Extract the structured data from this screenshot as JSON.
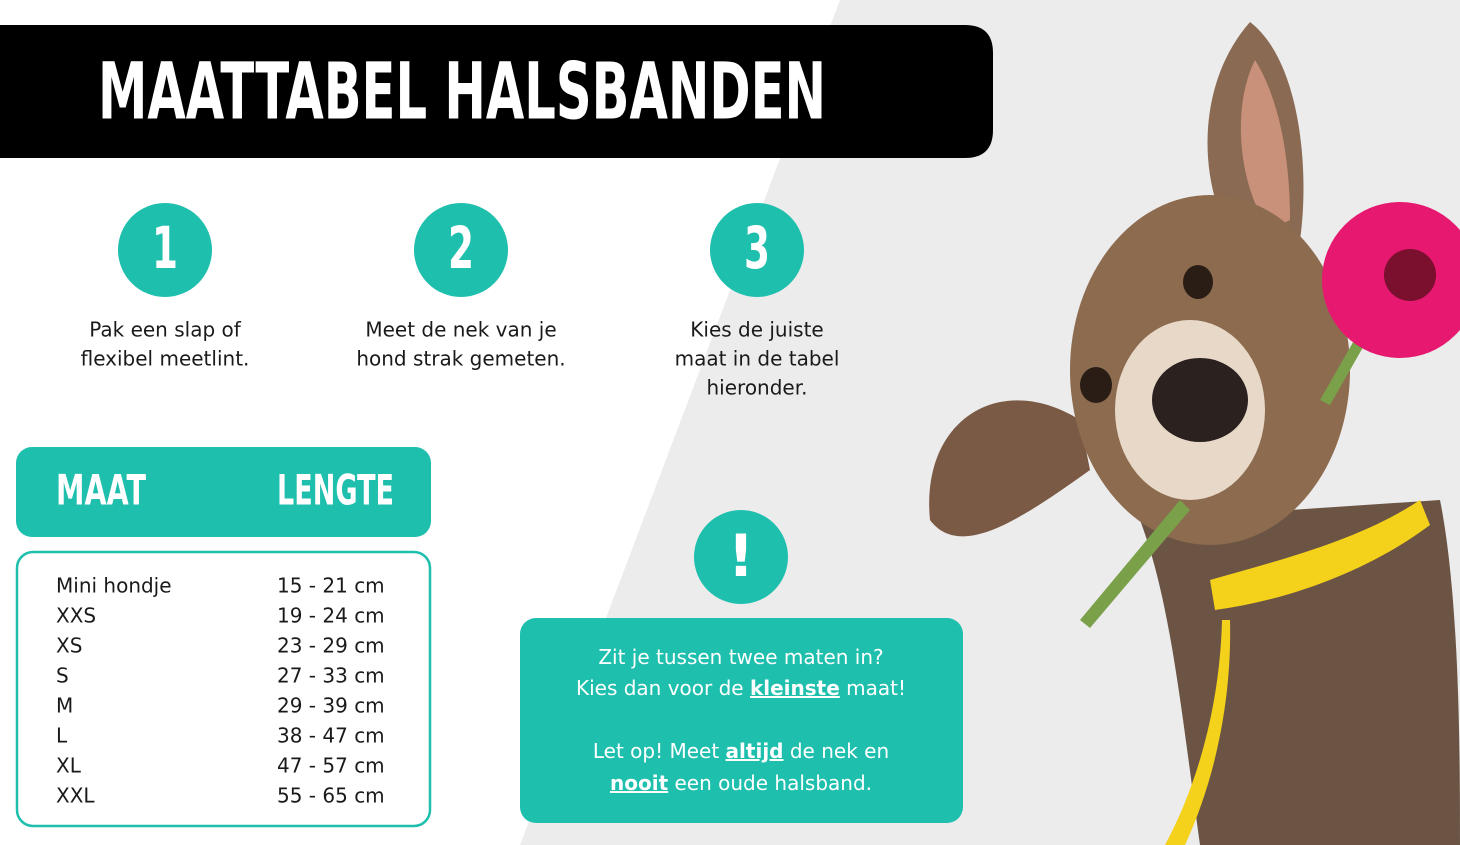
{
  "header": {
    "title": "MAATTABEL HALSBANDEN"
  },
  "steps": [
    {
      "number": "1",
      "lines": [
        "Pak een slap of",
        "flexibel meetlint."
      ]
    },
    {
      "number": "2",
      "lines": [
        "Meet de nek van je",
        "hond strak gemeten."
      ]
    },
    {
      "number": "3",
      "lines": [
        "Kies de juiste",
        "maat in de tabel",
        "hieronder."
      ]
    }
  ],
  "table": {
    "columns": [
      "MAAT",
      "LENGTE"
    ],
    "rows": [
      [
        "Mini hondje",
        "15 - 21 cm"
      ],
      [
        "XXS",
        "19 - 24 cm"
      ],
      [
        "XS",
        "23 - 29 cm"
      ],
      [
        "S",
        "27 - 33 cm"
      ],
      [
        "M",
        "29 - 39 cm"
      ],
      [
        "L",
        "38 - 47 cm"
      ],
      [
        "XL",
        "47 - 57 cm"
      ],
      [
        "XXL",
        "55 - 65 cm"
      ]
    ]
  },
  "notice": {
    "symbol": "!",
    "paragraphs": [
      [
        [
          "Zit je tussen twee maten in?"
        ],
        [
          "Kies dan voor de ",
          {
            "text": "kleinste",
            "underline": true
          },
          " maat!"
        ]
      ],
      [
        [
          "Let op! Meet ",
          {
            "text": "altijd",
            "underline": true
          },
          " de nek en"
        ],
        [
          {
            "text": "nooit",
            "underline": true
          },
          " een oude halsband."
        ]
      ]
    ]
  }
}
